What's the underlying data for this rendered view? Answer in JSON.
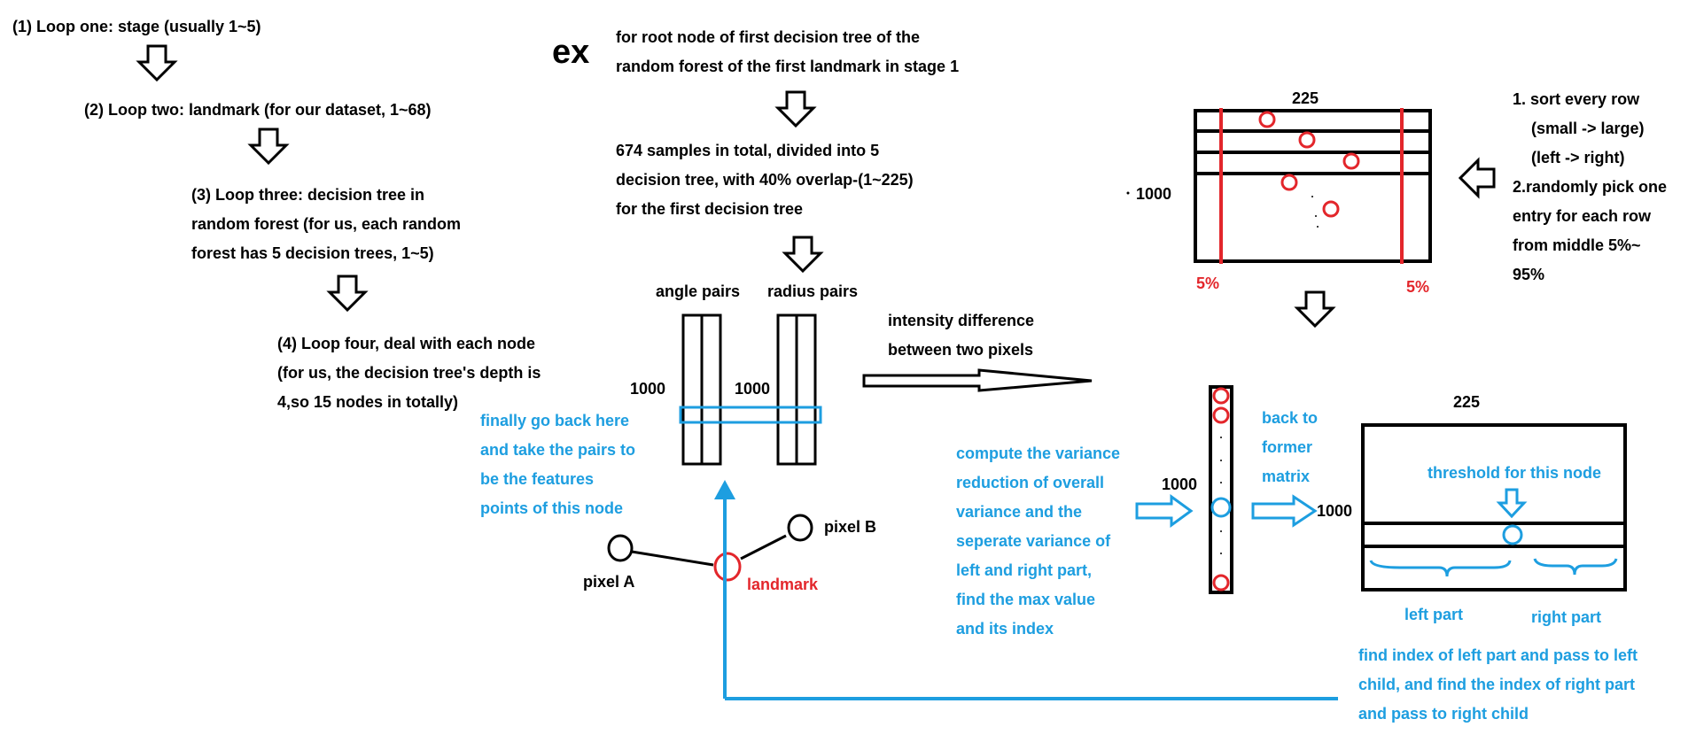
{
  "colors": {
    "black": "#000000",
    "red": "#e3262b",
    "blue": "#1d9ee0"
  },
  "loops": {
    "one": "(1)  Loop one: stage (usually 1~5)",
    "two": "(2) Loop two: landmark (for our dataset, 1~68)",
    "three": [
      "(3) Loop three: decision tree in",
      "random forest (for us, each random",
      "forest has 5 decision trees, 1~5)"
    ],
    "four": [
      "(4) Loop four, deal with each node",
      "(for us, the decision tree's depth is",
      "4,so 15 nodes in totally)"
    ]
  },
  "example": {
    "ex": "ex",
    "root": [
      "for root node of first decision tree of the",
      "random forest of the first landmark in stage 1"
    ],
    "samples": [
      "674 samples in total, divided into 5",
      "decision tree, with 40% overlap-(1~225)",
      "for the first decision tree"
    ]
  },
  "pairs": {
    "angle": "angle pairs",
    "radius": "radius pairs",
    "angle_rows": "1000",
    "radius_rows": "1000"
  },
  "intensity": [
    "intensity difference",
    "between two pixels"
  ],
  "finally": [
    "finally go back here",
    "and take the pairs to",
    "be the features",
    "points of this node"
  ],
  "pixels": {
    "a": "pixel A",
    "b": "pixel B",
    "landmark": "landmark"
  },
  "matrix_top": {
    "cols": "225",
    "rows": "1000",
    "left_pct": "5%",
    "right_pct": "5%"
  },
  "sort": [
    "1. sort every row",
    "(small -> large)",
    "(left -> right)",
    "2.randomly pick one",
    "entry for each row",
    "from middle 5%~",
    "95%"
  ],
  "variance": [
    "compute the variance",
    "reduction of overall",
    "variance and the",
    "seperate variance of",
    "left and right part,",
    "find the max value",
    "and its index"
  ],
  "column_rows": "1000",
  "back": [
    "back to",
    "former",
    "matrix"
  ],
  "matrix_bottom": {
    "cols": "225",
    "rows": "1000",
    "threshold": "threshold for this node",
    "left": "left part",
    "right": "right part"
  },
  "find": [
    "find index of left part and pass to left",
    "child, and find the index of right part",
    "and pass to right child"
  ]
}
